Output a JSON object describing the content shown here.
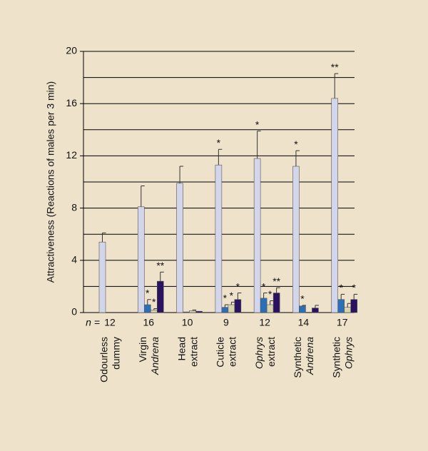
{
  "chart_data": {
    "type": "bar",
    "y_label": "Attractiveness (Reactions of males per 3 min)",
    "categories": [
      [
        "Odourless",
        "dummy"
      ],
      [
        "Virgin",
        "Andrena"
      ],
      [
        "Head",
        "extract"
      ],
      [
        "Cuticle",
        "extract"
      ],
      [
        "Ophrys",
        "extract"
      ],
      [
        "Synthetic",
        "Andrena"
      ],
      [
        "Synthetic",
        "Ophrys"
      ]
    ],
    "category_italic": [
      [
        false,
        false
      ],
      [
        false,
        true
      ],
      [
        false,
        false
      ],
      [
        false,
        false
      ],
      [
        true,
        false
      ],
      [
        false,
        true
      ],
      [
        false,
        true
      ]
    ],
    "n_label": "n =",
    "n": [
      12,
      16,
      10,
      9,
      12,
      14,
      17
    ],
    "series": [
      {
        "color": "#d3d6ea",
        "values": [
          5.4,
          8.1,
          9.9,
          11.3,
          11.8,
          11.2,
          16.4
        ],
        "errors": [
          0.7,
          1.6,
          1.3,
          1.2,
          2.1,
          1.2,
          1.9
        ],
        "significance": [
          null,
          null,
          null,
          "*",
          "*",
          "*",
          "**"
        ]
      },
      {
        "color": "#2b6fb6",
        "values": [
          null,
          0.6,
          0.05,
          0.4,
          1.1,
          0.5,
          1.0
        ],
        "errors": [
          null,
          0.4,
          null,
          0.2,
          0.4,
          0.05,
          0.4
        ],
        "significance": [
          null,
          "*",
          null,
          "*",
          "*",
          "*",
          "*"
        ]
      },
      {
        "color": "#d9d4ad",
        "values": [
          null,
          0.2,
          0.15,
          0.6,
          0.6,
          0,
          0.4
        ],
        "errors": [
          null,
          0.1,
          0.05,
          0.2,
          0.3,
          null,
          0.3
        ],
        "significance": [
          null,
          "*",
          null,
          "*",
          "*",
          null,
          null
        ]
      },
      {
        "color": "#2a1260",
        "values": [
          null,
          2.4,
          0.1,
          1.0,
          1.5,
          0.35,
          1.0
        ],
        "errors": [
          null,
          0.7,
          null,
          0.5,
          0.4,
          0.2,
          0.4
        ],
        "significance": [
          null,
          "**",
          null,
          "*",
          "**",
          null,
          "*"
        ]
      }
    ],
    "ylim": [
      0,
      20
    ],
    "yticks": [
      0,
      4,
      8,
      12,
      16,
      20
    ],
    "ygrid": [
      2,
      4,
      6,
      8,
      10,
      12,
      14,
      16,
      18,
      20
    ]
  }
}
